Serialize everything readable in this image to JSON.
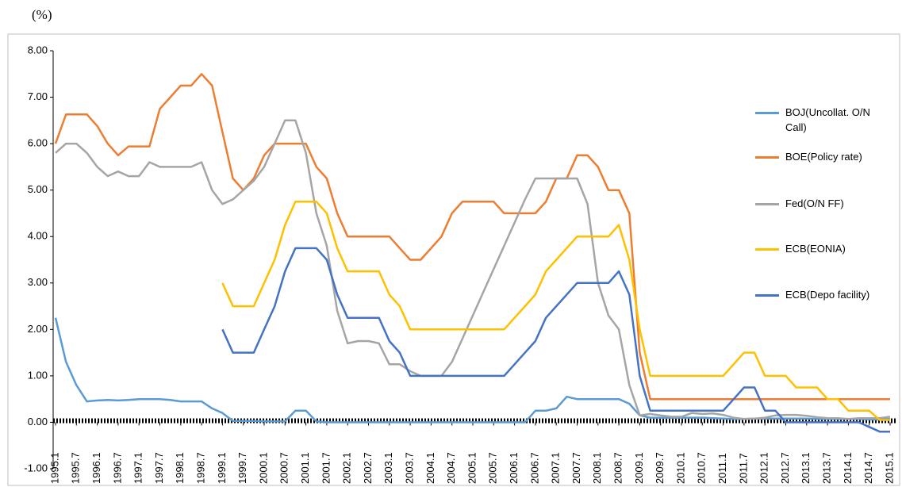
{
  "chart_data": {
    "type": "line",
    "y_label": "(%)",
    "categories": [
      "1995.1",
      null,
      "1995.7",
      null,
      "1996.1",
      null,
      "1996.7",
      null,
      "1997.1",
      null,
      "1997.7",
      null,
      "1998.1",
      null,
      "1998.7",
      null,
      "1999.1",
      null,
      "1999.7",
      null,
      "2000.1",
      null,
      "2000.7",
      null,
      "2001.1",
      null,
      "2001.7",
      null,
      "2002.1",
      null,
      "2002.7",
      null,
      "2003.1",
      null,
      "2003.7",
      null,
      "2004.1",
      null,
      "2004.7",
      null,
      "2005.1",
      null,
      "2005.7",
      null,
      "2006.1",
      null,
      "2006.7",
      null,
      "2007.1",
      null,
      "2007.7",
      null,
      "2008.1",
      null,
      "2008.7",
      null,
      "2009.1",
      null,
      "2009.7",
      null,
      "2010.1",
      null,
      "2010.7",
      null,
      "2011.1",
      null,
      "2011.7",
      null,
      "2012.1",
      null,
      "2012.7",
      null,
      "2013.1",
      null,
      "2013.7",
      null,
      "2014.1",
      null,
      "2014.7",
      null,
      "2015.1"
    ],
    "series": [
      {
        "name": "BOJ(Uncollat. O/N Call)",
        "color": "#5b9bd5",
        "values": [
          2.25,
          1.3,
          0.8,
          0.45,
          0.47,
          0.48,
          0.47,
          0.48,
          0.5,
          0.5,
          0.5,
          0.48,
          0.45,
          0.45,
          0.45,
          0.3,
          0.2,
          0.03,
          0.03,
          0.03,
          0.02,
          0.02,
          0.02,
          0.25,
          0.25,
          0.02,
          0,
          0,
          0,
          0,
          0,
          0,
          0,
          0,
          0,
          0,
          0,
          0,
          0,
          0,
          0,
          0,
          0,
          0,
          0,
          0,
          0.25,
          0.25,
          0.3,
          0.55,
          0.5,
          0.5,
          0.5,
          0.5,
          0.5,
          0.4,
          0.15,
          0.1,
          0.1,
          0.1,
          0.1,
          0.1,
          0.1,
          0.09,
          0.08,
          0.07,
          0.07,
          0.08,
          0.08,
          0.08,
          0.08,
          0.08,
          0.08,
          0.07,
          0.07,
          0.07,
          0.07,
          0.07,
          0.06,
          0.06,
          0.07
        ]
      },
      {
        "name": "BOE(Policy rate)",
        "color": "#ed7d31",
        "values": [
          6.0,
          6.63,
          6.63,
          6.63,
          6.38,
          6.0,
          5.75,
          5.94,
          5.94,
          5.94,
          6.75,
          7.0,
          7.25,
          7.25,
          7.5,
          7.25,
          6.25,
          5.25,
          5.0,
          5.25,
          5.75,
          6.0,
          6.0,
          6.0,
          6.0,
          5.5,
          5.25,
          4.5,
          4.0,
          4.0,
          4.0,
          4.0,
          4.0,
          3.75,
          3.5,
          3.5,
          3.75,
          4.0,
          4.5,
          4.75,
          4.75,
          4.75,
          4.75,
          4.5,
          4.5,
          4.5,
          4.5,
          4.75,
          5.25,
          5.25,
          5.75,
          5.75,
          5.5,
          5.0,
          5.0,
          4.5,
          1.5,
          0.5,
          0.5,
          0.5,
          0.5,
          0.5,
          0.5,
          0.5,
          0.5,
          0.5,
          0.5,
          0.5,
          0.5,
          0.5,
          0.5,
          0.5,
          0.5,
          0.5,
          0.5,
          0.5,
          0.5,
          0.5,
          0.5,
          0.5,
          0.5
        ]
      },
      {
        "name": "Fed(O/N FF)",
        "color": "#a5a5a5",
        "values": [
          5.8,
          6.0,
          6.0,
          5.8,
          5.5,
          5.3,
          5.4,
          5.3,
          5.3,
          5.6,
          5.5,
          5.5,
          5.5,
          5.5,
          5.6,
          5.0,
          4.7,
          4.8,
          5.0,
          5.2,
          5.5,
          6.0,
          6.5,
          6.5,
          5.8,
          4.5,
          3.8,
          2.4,
          1.7,
          1.75,
          1.75,
          1.7,
          1.25,
          1.25,
          1.1,
          1.0,
          1.0,
          1.0,
          1.3,
          1.8,
          2.3,
          2.8,
          3.3,
          3.8,
          4.3,
          4.8,
          5.25,
          5.25,
          5.25,
          5.25,
          5.25,
          4.7,
          3.0,
          2.3,
          2.0,
          0.8,
          0.15,
          0.18,
          0.15,
          0.12,
          0.12,
          0.2,
          0.18,
          0.19,
          0.16,
          0.1,
          0.07,
          0.08,
          0.1,
          0.15,
          0.16,
          0.16,
          0.14,
          0.11,
          0.09,
          0.09,
          0.07,
          0.09,
          0.09,
          0.09,
          0.12
        ]
      },
      {
        "name": "ECB(EONIA)",
        "color": "#ffc000",
        "values": [
          null,
          null,
          null,
          null,
          null,
          null,
          null,
          null,
          null,
          null,
          null,
          null,
          null,
          null,
          null,
          null,
          3.0,
          2.5,
          2.5,
          2.5,
          3.0,
          3.5,
          4.25,
          4.75,
          4.75,
          4.75,
          4.5,
          3.75,
          3.25,
          3.25,
          3.25,
          3.25,
          2.75,
          2.5,
          2.0,
          2.0,
          2.0,
          2.0,
          2.0,
          2.0,
          2.0,
          2.0,
          2.0,
          2.0,
          2.25,
          2.5,
          2.75,
          3.25,
          3.5,
          3.75,
          4.0,
          4.0,
          4.0,
          4.0,
          4.25,
          3.5,
          2.0,
          1.0,
          1.0,
          1.0,
          1.0,
          1.0,
          1.0,
          1.0,
          1.0,
          1.25,
          1.5,
          1.5,
          1.0,
          1.0,
          1.0,
          0.75,
          0.75,
          0.75,
          0.5,
          0.5,
          0.25,
          0.25,
          0.25,
          0.05,
          0.05
        ]
      },
      {
        "name": "ECB(Depo facility)",
        "color": "#4472c4",
        "values": [
          null,
          null,
          null,
          null,
          null,
          null,
          null,
          null,
          null,
          null,
          null,
          null,
          null,
          null,
          null,
          null,
          2.0,
          1.5,
          1.5,
          1.5,
          2.0,
          2.5,
          3.25,
          3.75,
          3.75,
          3.75,
          3.5,
          2.75,
          2.25,
          2.25,
          2.25,
          2.25,
          1.75,
          1.5,
          1.0,
          1.0,
          1.0,
          1.0,
          1.0,
          1.0,
          1.0,
          1.0,
          1.0,
          1.0,
          1.25,
          1.5,
          1.75,
          2.25,
          2.5,
          2.75,
          3.0,
          3.0,
          3.0,
          3.0,
          3.25,
          2.75,
          1.0,
          0.25,
          0.25,
          0.25,
          0.25,
          0.25,
          0.25,
          0.25,
          0.25,
          0.5,
          0.75,
          0.75,
          0.25,
          0.25,
          0,
          0,
          0,
          0,
          0,
          0,
          0,
          0,
          -0.1,
          -0.2,
          -0.2
        ]
      }
    ],
    "ylim": [
      -1,
      8
    ],
    "yticks": [
      {
        "value": -1,
        "label": "-1.00"
      },
      {
        "value": 0,
        "label": "0.00"
      },
      {
        "value": 1,
        "label": "1.00"
      },
      {
        "value": 2,
        "label": "2.00"
      },
      {
        "value": 3,
        "label": "3.00"
      },
      {
        "value": 4,
        "label": "4.00"
      },
      {
        "value": 5,
        "label": "5.00"
      },
      {
        "value": 6,
        "label": "6.00"
      },
      {
        "value": 7,
        "label": "7.00"
      },
      {
        "value": 8,
        "label": "8.00"
      }
    ],
    "grid": true,
    "legend": "right"
  }
}
